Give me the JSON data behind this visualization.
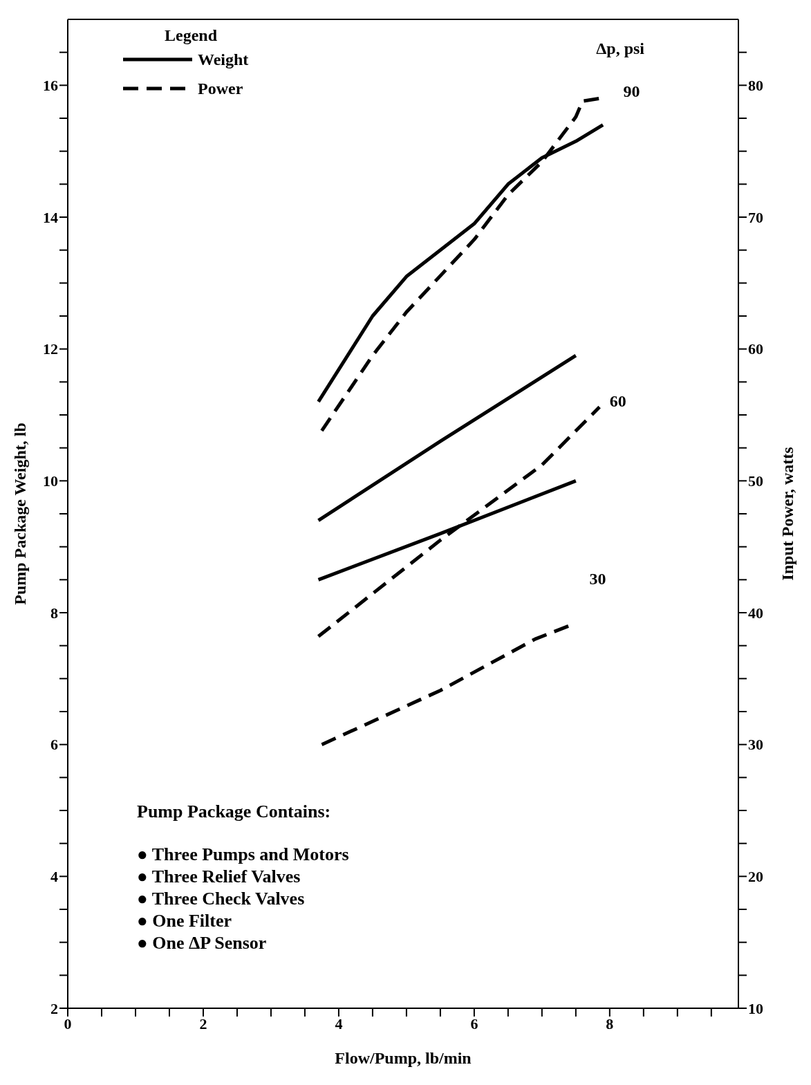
{
  "chart_data": {
    "type": "line",
    "xlabel": "Flow/Pump,  lb/min",
    "ylabel": "Pump Package Weight,  lb",
    "y2label": "Input Power,  watts",
    "legend_title": "Legend",
    "legend": "top left",
    "marker": "none",
    "xlim": [
      0,
      9.9
    ],
    "ylim": [
      2,
      17
    ],
    "y2lim": [
      10,
      85
    ],
    "xticks": [
      0,
      {
        "value": 0.5,
        "label": null
      },
      {
        "value": 1,
        "label": null
      },
      {
        "value": 1.5,
        "label": null
      },
      2,
      {
        "value": 2.5,
        "label": null
      },
      {
        "value": 3,
        "label": null
      },
      {
        "value": 3.5,
        "label": null
      },
      4,
      {
        "value": 4.5,
        "label": null
      },
      {
        "value": 5,
        "label": null
      },
      {
        "value": 5.5,
        "label": null
      },
      6,
      {
        "value": 6.5,
        "label": null
      },
      {
        "value": 7,
        "label": null
      },
      {
        "value": 7.5,
        "label": null
      },
      8,
      {
        "value": 8.5,
        "label": null
      },
      {
        "value": 9,
        "label": null
      },
      {
        "value": 9.5,
        "label": null
      }
    ],
    "yticks": [
      2,
      {
        "value": 2.5,
        "label": null
      },
      {
        "value": 3,
        "label": null
      },
      {
        "value": 3.5,
        "label": null
      },
      4,
      {
        "value": 4.5,
        "label": null
      },
      {
        "value": 5,
        "label": null
      },
      {
        "value": 5.5,
        "label": null
      },
      6,
      {
        "value": 6.5,
        "label": null
      },
      {
        "value": 7,
        "label": null
      },
      {
        "value": 7.5,
        "label": null
      },
      8,
      {
        "value": 8.5,
        "label": null
      },
      {
        "value": 9,
        "label": null
      },
      {
        "value": 9.5,
        "label": null
      },
      10,
      {
        "value": 10.5,
        "label": null
      },
      {
        "value": 11,
        "label": null
      },
      {
        "value": 11.5,
        "label": null
      },
      12,
      {
        "value": 12.5,
        "label": null
      },
      {
        "value": 13,
        "label": null
      },
      {
        "value": 13.5,
        "label": null
      },
      14,
      {
        "value": 14.5,
        "label": null
      },
      {
        "value": 15,
        "label": null
      },
      {
        "value": 15.5,
        "label": null
      },
      16,
      {
        "value": 16.5,
        "label": null
      }
    ],
    "y2ticks": [
      10,
      {
        "value": 12.5,
        "label": null
      },
      {
        "value": 15,
        "label": null
      },
      {
        "value": 17.5,
        "label": null
      },
      20,
      {
        "value": 22.5,
        "label": null
      },
      {
        "value": 25,
        "label": null
      },
      {
        "value": 27.5,
        "label": null
      },
      30,
      {
        "value": 32.5,
        "label": null
      },
      {
        "value": 35,
        "label": null
      },
      {
        "value": 37.5,
        "label": null
      },
      40,
      {
        "value": 42.5,
        "label": null
      },
      {
        "value": 45,
        "label": null
      },
      {
        "value": 47.5,
        "label": null
      },
      50,
      {
        "value": 52.5,
        "label": null
      },
      {
        "value": 55,
        "label": null
      },
      {
        "value": 57.5,
        "label": null
      },
      60,
      {
        "value": 62.5,
        "label": null
      },
      {
        "value": 65,
        "label": null
      },
      {
        "value": 67.5,
        "label": null
      },
      70,
      {
        "value": 72.5,
        "label": null
      },
      {
        "value": 75,
        "label": null
      },
      {
        "value": 77.5,
        "label": null
      },
      80,
      {
        "value": 82.5,
        "label": null
      }
    ],
    "series": [
      {
        "name": "Weight",
        "color": "#000000",
        "line_style": "solid",
        "x": [
          3.7,
          4.5,
          5,
          6,
          6.5,
          7,
          7.5,
          7.9
        ],
        "values": [
          11.2,
          12.5,
          13.1,
          13.9,
          14.5,
          14.9,
          15.15,
          15.4
        ]
      },
      {
        "name": "Power",
        "color": "#000000",
        "line_style": "dashed",
        "axis": "y2",
        "x": [
          3.75,
          4.5,
          5,
          6,
          6.5,
          7,
          7.5,
          7.6,
          7.85
        ],
        "values": [
          53.8,
          59.5,
          62.8,
          68.3,
          71.7,
          74.2,
          77.6,
          78.8,
          79
        ]
      },
      {
        "color": "#000000",
        "line_style": "solid",
        "x": [
          3.7,
          5.5,
          7.5
        ],
        "values": [
          9.4,
          10.6,
          11.9
        ]
      },
      {
        "color": "#000000",
        "line_style": "dashed",
        "axis": "y2",
        "x": [
          3.7,
          5.5,
          7,
          7.85
        ],
        "values": [
          38.2,
          45.5,
          51.2,
          55.6
        ]
      },
      {
        "color": "#000000",
        "line_style": "solid",
        "x": [
          3.7,
          5.5,
          7.5
        ],
        "values": [
          8.5,
          9.2,
          10
        ]
      },
      {
        "color": "#000000",
        "line_style": "dashed",
        "axis": "y2",
        "x": [
          3.75,
          5.5,
          6.9,
          7.4
        ],
        "values": [
          30,
          34.1,
          38,
          39
        ]
      }
    ],
    "annotations": [
      "Δp, psi",
      "90",
      "60",
      "30",
      "Pump Package Contains:",
      "●  Three Pumps and Motors",
      "●  Three Relief Valves",
      "●  Three Check Valves",
      "●  One Filter",
      "●  One ΔP Sensor"
    ]
  }
}
